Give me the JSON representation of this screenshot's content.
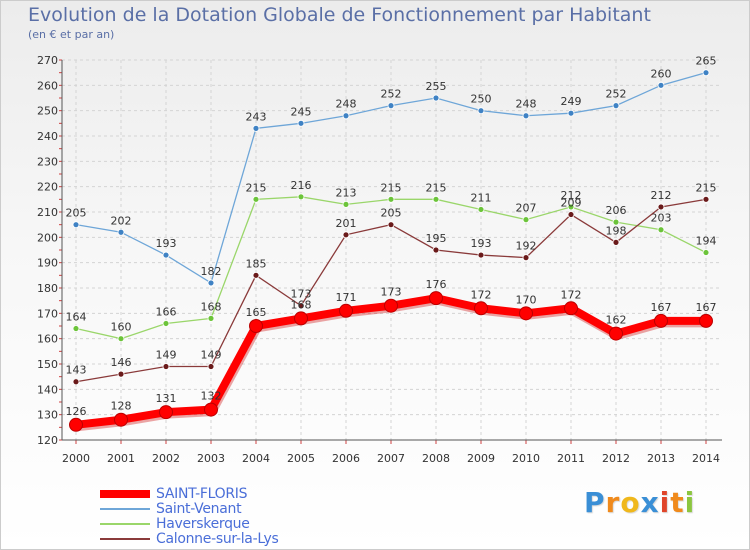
{
  "title": "Evolution de la Dotation Globale de Fonctionnement par Habitant",
  "subtitle": "(en € et par an)",
  "logo": {
    "letters": [
      "P",
      "r",
      "o",
      "x",
      "i",
      "t",
      "i"
    ],
    "colors": [
      "#3a8fd6",
      "#f08a1c",
      "#f0b81c",
      "#3a8fd6",
      "#e0452a",
      "#f08a1c",
      "#8cc63f"
    ]
  },
  "chart_data": {
    "type": "line",
    "title": "Evolution de la Dotation Globale de Fonctionnement par Habitant",
    "subtitle": "(en € et par an)",
    "xlabel": "",
    "ylabel": "",
    "x": [
      "2000",
      "2001",
      "2002",
      "2003",
      "2004",
      "2005",
      "2006",
      "2007",
      "2008",
      "2009",
      "2010",
      "2011",
      "2012",
      "2013",
      "2014"
    ],
    "ylim": [
      120,
      270
    ],
    "yticks": [
      120,
      130,
      140,
      150,
      160,
      170,
      180,
      190,
      200,
      210,
      220,
      230,
      240,
      250,
      260,
      270
    ],
    "grid": true,
    "legend_position": "bottom-left",
    "series": [
      {
        "name": "SAINT-FLORIS",
        "values": [
          126,
          128,
          131,
          132,
          165,
          168,
          171,
          173,
          176,
          172,
          170,
          172,
          162,
          167,
          167
        ],
        "labels": [
          "126",
          "128",
          "131",
          "132",
          "165",
          "168",
          "171",
          "173",
          "176",
          "172",
          "170",
          "172",
          "162",
          "167",
          "167"
        ],
        "color": "#ff0000",
        "marker_color": "#ff0000",
        "emphasis": true
      },
      {
        "name": "Saint-Venant",
        "values": [
          205,
          202,
          193,
          182,
          243,
          245,
          248,
          252,
          255,
          250,
          248,
          249,
          252,
          260,
          265
        ],
        "labels": [
          "205",
          "202",
          "193",
          "182",
          "243",
          "245",
          "248",
          "252",
          "255",
          "250",
          "248",
          "249",
          "252",
          "260",
          "265"
        ],
        "color": "#6ea6d8",
        "marker_color": "#3f82c4",
        "emphasis": false
      },
      {
        "name": "Haverskerque",
        "values": [
          164,
          160,
          166,
          168,
          215,
          216,
          213,
          215,
          215,
          211,
          207,
          212,
          206,
          203,
          194
        ],
        "labels": [
          "164",
          "160",
          "166",
          "168",
          "215",
          "216",
          "213",
          "215",
          "215",
          "211",
          "207",
          "212",
          "206",
          "203",
          "194"
        ],
        "color": "#9ad66a",
        "marker_color": "#6cc43a",
        "emphasis": false
      },
      {
        "name": "Calonne-sur-la-Lys",
        "values": [
          143,
          146,
          149,
          149,
          185,
          173,
          201,
          205,
          195,
          193,
          192,
          209,
          198,
          212,
          215
        ],
        "labels": [
          "143",
          "146",
          "149",
          "149",
          "185",
          "173",
          "201",
          "205",
          "195",
          "193",
          "192",
          "209",
          "198",
          "212",
          "215"
        ],
        "color": "#8a3a3a",
        "marker_color": "#6a1a1a",
        "emphasis": false
      }
    ]
  }
}
